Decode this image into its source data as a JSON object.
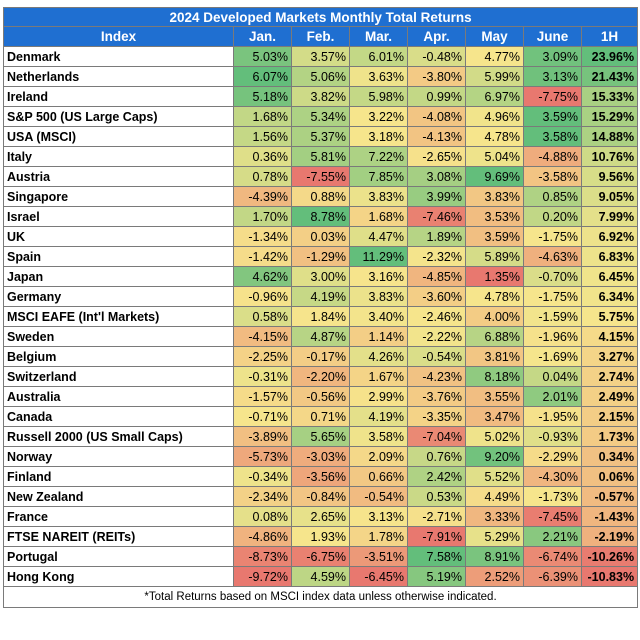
{
  "chart_data": {
    "type": "table",
    "title": "2024 Developed Markets Monthly Total Returns",
    "columns": [
      "Index",
      "Jan.",
      "Feb.",
      "Mar.",
      "Apr.",
      "May",
      "June",
      "1H"
    ],
    "rows": [
      {
        "name": "Denmark",
        "values": [
          "5.03%",
          "3.57%",
          "6.01%",
          "-0.48%",
          "4.77%",
          "3.09%",
          "23.96%"
        ]
      },
      {
        "name": "Netherlands",
        "values": [
          "6.07%",
          "5.06%",
          "3.63%",
          "-3.80%",
          "5.99%",
          "3.13%",
          "21.43%"
        ]
      },
      {
        "name": "Ireland",
        "values": [
          "5.18%",
          "3.82%",
          "5.98%",
          "0.99%",
          "6.97%",
          "-7.75%",
          "15.33%"
        ]
      },
      {
        "name": "S&P 500 (US Large Caps)",
        "values": [
          "1.68%",
          "5.34%",
          "3.22%",
          "-4.08%",
          "4.96%",
          "3.59%",
          "15.29%"
        ]
      },
      {
        "name": "USA (MSCI)",
        "values": [
          "1.56%",
          "5.37%",
          "3.18%",
          "-4.13%",
          "4.78%",
          "3.58%",
          "14.88%"
        ]
      },
      {
        "name": "Italy",
        "values": [
          "0.36%",
          "5.81%",
          "7.22%",
          "-2.65%",
          "5.04%",
          "-4.88%",
          "10.76%"
        ]
      },
      {
        "name": "Austria",
        "values": [
          "0.78%",
          "-7.55%",
          "7.85%",
          "3.08%",
          "9.69%",
          "-3.58%",
          "9.56%"
        ]
      },
      {
        "name": "Singapore",
        "values": [
          "-4.39%",
          "0.88%",
          "3.83%",
          "3.99%",
          "3.83%",
          "0.85%",
          "9.05%"
        ]
      },
      {
        "name": "Israel",
        "values": [
          "1.70%",
          "8.78%",
          "1.68%",
          "-7.46%",
          "3.53%",
          "0.20%",
          "7.99%"
        ]
      },
      {
        "name": "UK",
        "values": [
          "-1.34%",
          "0.03%",
          "4.47%",
          "1.89%",
          "3.59%",
          "-1.75%",
          "6.92%"
        ]
      },
      {
        "name": "Spain",
        "values": [
          "-1.42%",
          "-1.29%",
          "11.29%",
          "-2.32%",
          "5.89%",
          "-4.63%",
          "6.83%"
        ]
      },
      {
        "name": "Japan",
        "values": [
          "4.62%",
          "3.00%",
          "3.16%",
          "-4.85%",
          "1.35%",
          "-0.70%",
          "6.45%"
        ]
      },
      {
        "name": "Germany",
        "values": [
          "-0.96%",
          "4.19%",
          "3.83%",
          "-3.60%",
          "4.78%",
          "-1.75%",
          "6.34%"
        ]
      },
      {
        "name": "MSCI EAFE (Int'l Markets)",
        "values": [
          "0.58%",
          "1.84%",
          "3.40%",
          "-2.46%",
          "4.00%",
          "-1.59%",
          "5.75%"
        ]
      },
      {
        "name": "Sweden",
        "values": [
          "-4.15%",
          "4.87%",
          "1.14%",
          "-2.22%",
          "6.88%",
          "-1.96%",
          "4.15%"
        ]
      },
      {
        "name": "Belgium",
        "values": [
          "-2.25%",
          "-0.17%",
          "4.26%",
          "-0.54%",
          "3.81%",
          "-1.69%",
          "3.27%"
        ]
      },
      {
        "name": "Switzerland",
        "values": [
          "-0.31%",
          "-2.20%",
          "1.67%",
          "-4.23%",
          "8.18%",
          "0.04%",
          "2.74%"
        ]
      },
      {
        "name": "Australia",
        "values": [
          "-1.57%",
          "-0.56%",
          "2.99%",
          "-3.76%",
          "3.55%",
          "2.01%",
          "2.49%"
        ]
      },
      {
        "name": "Canada",
        "values": [
          "-0.71%",
          "0.71%",
          "4.19%",
          "-3.35%",
          "3.47%",
          "-1.95%",
          "2.15%"
        ]
      },
      {
        "name": "Russell 2000 (US Small Caps)",
        "values": [
          "-3.89%",
          "5.65%",
          "3.58%",
          "-7.04%",
          "5.02%",
          "-0.93%",
          "1.73%"
        ]
      },
      {
        "name": "Norway",
        "values": [
          "-5.73%",
          "-3.03%",
          "2.09%",
          "0.76%",
          "9.20%",
          "-2.29%",
          "0.34%"
        ]
      },
      {
        "name": "Finland",
        "values": [
          "-0.34%",
          "-3.56%",
          "0.66%",
          "2.42%",
          "5.52%",
          "-4.30%",
          "0.06%"
        ]
      },
      {
        "name": "New Zealand",
        "values": [
          "-2.34%",
          "-0.84%",
          "-0.54%",
          "0.53%",
          "4.49%",
          "-1.73%",
          "-0.57%"
        ]
      },
      {
        "name": "France",
        "values": [
          "0.08%",
          "2.65%",
          "3.13%",
          "-2.71%",
          "3.33%",
          "-7.45%",
          "-1.43%"
        ]
      },
      {
        "name": "FTSE NAREIT (REITs)",
        "values": [
          "-4.86%",
          "1.93%",
          "1.78%",
          "-7.91%",
          "5.29%",
          "2.21%",
          "-2.19%"
        ]
      },
      {
        "name": "Portugal",
        "values": [
          "-8.73%",
          "-6.75%",
          "-3.51%",
          "7.58%",
          "8.91%",
          "-6.74%",
          "-10.26%"
        ]
      },
      {
        "name": "Hong Kong",
        "values": [
          "-9.72%",
          "4.59%",
          "-6.45%",
          "5.19%",
          "2.52%",
          "-6.39%",
          "-10.83%"
        ]
      }
    ],
    "footnote": "*Total Returns based on MSCI index data unless otherwise indicated."
  },
  "colors": {
    "header_bg": "#1f6fd1",
    "header_text": "#ffffff",
    "low": "#e8786f",
    "mid": "#f6e58c",
    "high": "#63be7b"
  }
}
